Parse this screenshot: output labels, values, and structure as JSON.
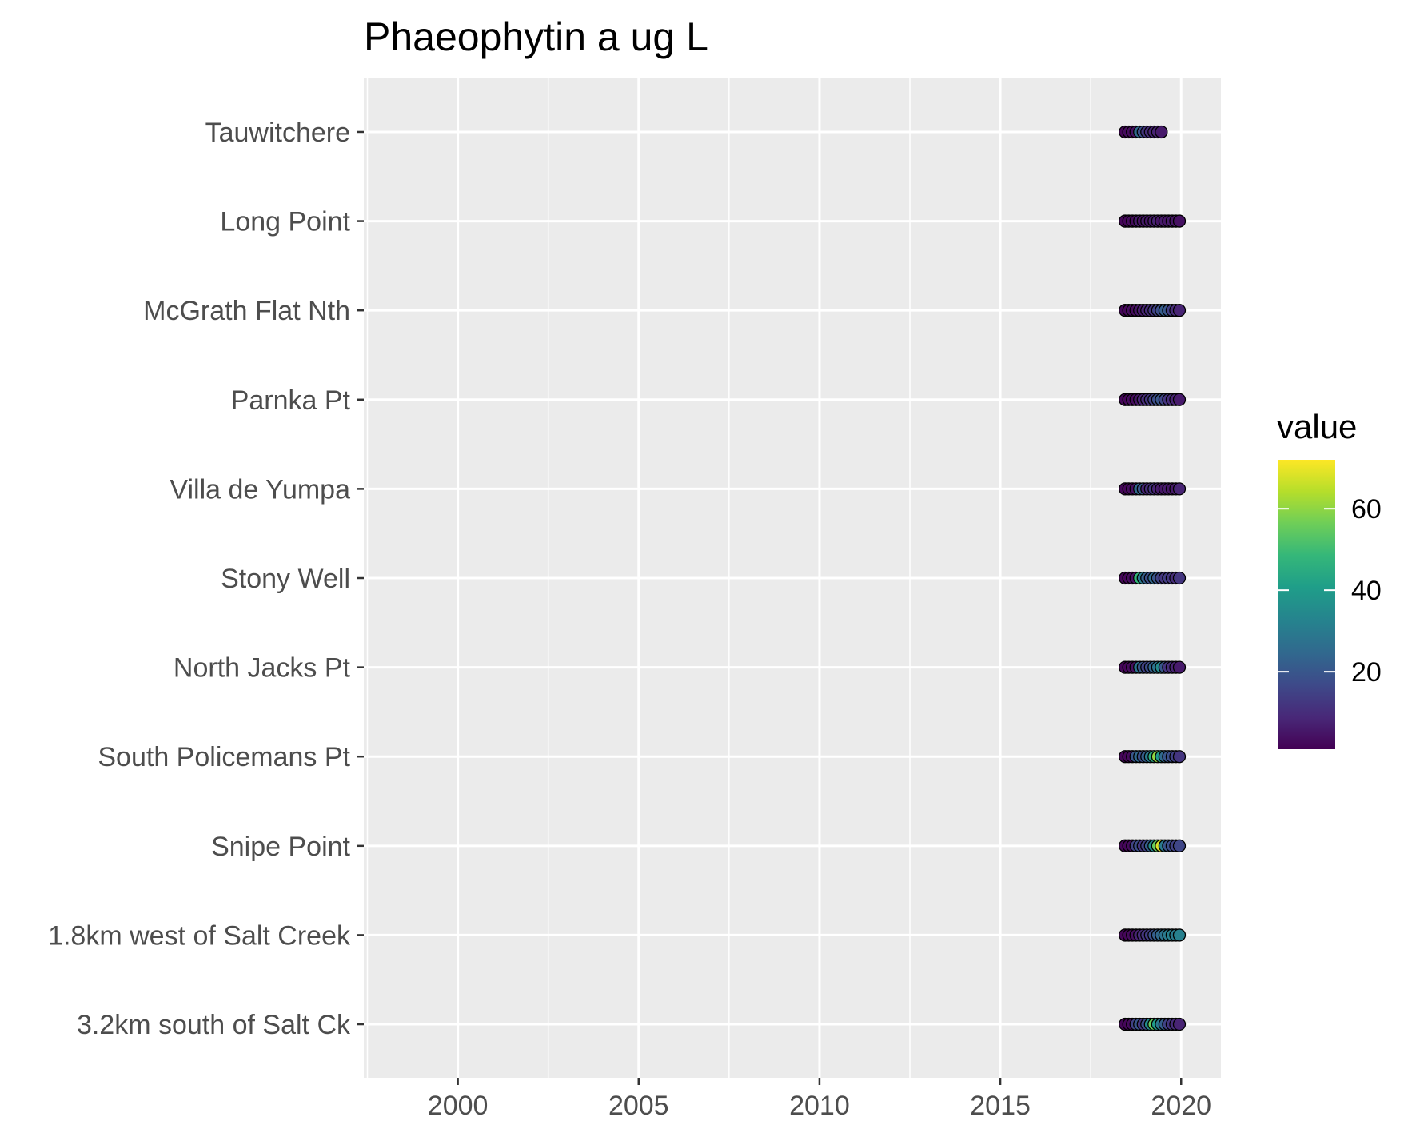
{
  "chart_data": {
    "type": "scatter",
    "title": "Phaeophytin a ug L",
    "xlabel": "",
    "ylabel": "",
    "xlim": [
      1997.4,
      2021.1
    ],
    "x_ticks": [
      "2000",
      "2005",
      "2010",
      "2015",
      "2020"
    ],
    "x_tick_values": [
      2000,
      2005,
      2010,
      2015,
      2020
    ],
    "categories": [
      "Tauwitchere",
      "Long Point",
      "McGrath Flat Nth",
      "Parnka Pt",
      "Villa de Yumpa",
      "Stony Well",
      "North Jacks Pt",
      "South Policemans Pt",
      "Snipe Point",
      "1.8km west of Salt Creek",
      "3.2km south of Salt Ck"
    ],
    "grid": true,
    "colorbar": {
      "title": "value",
      "range": [
        1,
        72
      ],
      "ticks": [
        "20",
        "40",
        "60"
      ],
      "tick_values": [
        20,
        40,
        60
      ],
      "palette": [
        "#440154",
        "#482878",
        "#3e4989",
        "#31688e",
        "#26828e",
        "#1f9e89",
        "#35b779",
        "#6ece58",
        "#b5de2b",
        "#fde725"
      ]
    },
    "series": [
      {
        "site": "Tauwitchere",
        "x": [
          2018.45,
          2018.55,
          2018.65,
          2018.75,
          2018.85,
          2018.95,
          2019.05,
          2019.15,
          2019.25,
          2019.35,
          2019.45
        ],
        "values": [
          2,
          3,
          3,
          4,
          25,
          18,
          12,
          10,
          8,
          8,
          6
        ]
      },
      {
        "site": "Long Point",
        "x": [
          2018.45,
          2018.55,
          2018.65,
          2018.75,
          2018.85,
          2018.95,
          2019.05,
          2019.15,
          2019.25,
          2019.35,
          2019.45,
          2019.55,
          2019.65,
          2019.75,
          2019.85,
          2019.95
        ],
        "values": [
          2,
          2,
          3,
          3,
          6,
          4,
          6,
          5,
          6,
          8,
          5,
          6,
          5,
          6,
          5,
          4
        ]
      },
      {
        "site": "McGrath Flat Nth",
        "x": [
          2018.45,
          2018.55,
          2018.65,
          2018.75,
          2018.85,
          2018.95,
          2019.05,
          2019.15,
          2019.25,
          2019.35,
          2019.45,
          2019.55,
          2019.65,
          2019.75,
          2019.85,
          2019.95
        ],
        "values": [
          2,
          2,
          3,
          3,
          5,
          6,
          8,
          10,
          12,
          15,
          18,
          22,
          20,
          14,
          10,
          8
        ]
      },
      {
        "site": "Parnka Pt",
        "x": [
          2018.45,
          2018.55,
          2018.65,
          2018.75,
          2018.85,
          2018.95,
          2019.05,
          2019.15,
          2019.25,
          2019.35,
          2019.45,
          2019.55,
          2019.65,
          2019.75,
          2019.85,
          2019.95
        ],
        "values": [
          2,
          2,
          3,
          3,
          5,
          8,
          10,
          12,
          15,
          18,
          20,
          16,
          12,
          10,
          8,
          6
        ]
      },
      {
        "site": "Villa de Yumpa",
        "x": [
          2018.45,
          2018.55,
          2018.65,
          2018.75,
          2018.85,
          2018.95,
          2019.05,
          2019.15,
          2019.25,
          2019.35,
          2019.45,
          2019.55,
          2019.65,
          2019.75,
          2019.85,
          2019.95
        ],
        "values": [
          2,
          2,
          3,
          4,
          25,
          20,
          8,
          10,
          12,
          8,
          6,
          5,
          6,
          5,
          6,
          8
        ]
      },
      {
        "site": "Stony Well",
        "x": [
          2018.45,
          2018.55,
          2018.65,
          2018.75,
          2018.85,
          2018.95,
          2019.05,
          2019.15,
          2019.25,
          2019.35,
          2019.45,
          2019.55,
          2019.65,
          2019.75,
          2019.85,
          2019.95
        ],
        "values": [
          2,
          2,
          3,
          4,
          48,
          30,
          22,
          18,
          25,
          20,
          15,
          12,
          14,
          12,
          10,
          12
        ]
      },
      {
        "site": "North Jacks Pt",
        "x": [
          2018.45,
          2018.55,
          2018.65,
          2018.75,
          2018.85,
          2018.95,
          2019.05,
          2019.15,
          2019.25,
          2019.35,
          2019.45,
          2019.55,
          2019.65,
          2019.75,
          2019.85,
          2019.95
        ],
        "values": [
          2,
          2,
          3,
          4,
          28,
          20,
          15,
          18,
          24,
          28,
          35,
          20,
          12,
          10,
          8,
          6
        ]
      },
      {
        "site": "South Policemans Pt",
        "x": [
          2018.45,
          2018.55,
          2018.65,
          2018.75,
          2018.85,
          2018.95,
          2019.05,
          2019.15,
          2019.25,
          2019.35,
          2019.45,
          2019.55,
          2019.65,
          2019.75,
          2019.85,
          2019.95
        ],
        "values": [
          2,
          2,
          3,
          20,
          25,
          18,
          22,
          30,
          45,
          60,
          40,
          25,
          20,
          18,
          15,
          12
        ]
      },
      {
        "site": "Snipe Point",
        "x": [
          2018.45,
          2018.55,
          2018.65,
          2018.75,
          2018.85,
          2018.95,
          2019.05,
          2019.15,
          2019.25,
          2019.35,
          2019.45,
          2019.55,
          2019.65,
          2019.75,
          2019.85,
          2019.95
        ],
        "values": [
          2,
          2,
          3,
          15,
          18,
          12,
          15,
          22,
          35,
          55,
          68,
          30,
          20,
          18,
          15,
          16
        ]
      },
      {
        "site": "1.8km west of Salt Creek",
        "x": [
          2018.45,
          2018.55,
          2018.65,
          2018.75,
          2018.85,
          2018.95,
          2019.05,
          2019.15,
          2019.25,
          2019.35,
          2019.45,
          2019.55,
          2019.65,
          2019.75,
          2019.85,
          2019.95
        ],
        "values": [
          2,
          2,
          3,
          4,
          8,
          10,
          12,
          14,
          18,
          22,
          25,
          28,
          30,
          32,
          30,
          32
        ]
      },
      {
        "site": "3.2km south of Salt Ck",
        "x": [
          2018.45,
          2018.55,
          2018.65,
          2018.75,
          2018.85,
          2018.95,
          2019.05,
          2019.15,
          2019.25,
          2019.35,
          2019.45,
          2019.55,
          2019.65,
          2019.75,
          2019.85,
          2019.95
        ],
        "values": [
          2,
          2,
          3,
          15,
          20,
          12,
          18,
          35,
          55,
          40,
          30,
          22,
          15,
          12,
          10,
          8
        ]
      }
    ]
  }
}
